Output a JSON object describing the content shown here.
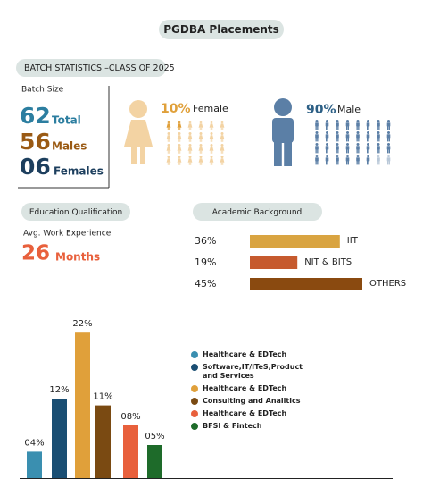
{
  "title": "PGDBA Placements",
  "batch": {
    "heading": "BATCH STATISTICS –CLASS OF 2025",
    "size_label": "Batch Size",
    "stats": [
      {
        "number": "62",
        "label": "Total"
      },
      {
        "number": "56",
        "label": "Males"
      },
      {
        "number": "06",
        "label": "Females"
      }
    ],
    "female": {
      "percent": "10%",
      "label": "Female"
    },
    "male": {
      "percent": "90%",
      "label": "Male"
    }
  },
  "education": {
    "heading": "Education Qualification",
    "experience_label": "Avg. Work Experience",
    "experience_value": "26",
    "experience_unit": "Months"
  },
  "academic": {
    "heading": "Academic Background",
    "categories": [
      "IIT",
      "NIT & BITS",
      "OTHERS"
    ],
    "values": [
      36,
      19,
      45
    ],
    "value_labels": [
      "36%",
      "19%",
      "45%"
    ],
    "colors": [
      "#d9a441",
      "#c65a2e",
      "#8a4a10"
    ]
  },
  "sectors": {
    "type": "bar",
    "values": [
      4,
      12,
      22,
      11,
      8,
      5
    ],
    "value_labels": [
      "04%",
      "12%",
      "22%",
      "11%",
      "08%",
      "05%"
    ],
    "series": [
      {
        "name": "Healthcare & EDTech",
        "color": "#3a8fb0"
      },
      {
        "name": "Software,IT/ITeS,Product and Services",
        "color": "#1a4e73"
      },
      {
        "name": "Healthcare & EDTech",
        "color": "#e0a03a"
      },
      {
        "name": "Consulting and Anailtics",
        "color": "#7a4a12"
      },
      {
        "name": "Healthcare & EDTech",
        "color": "#e8603c"
      },
      {
        "name": "BFSI & Fintech",
        "color": "#1e6b2a"
      }
    ]
  }
}
